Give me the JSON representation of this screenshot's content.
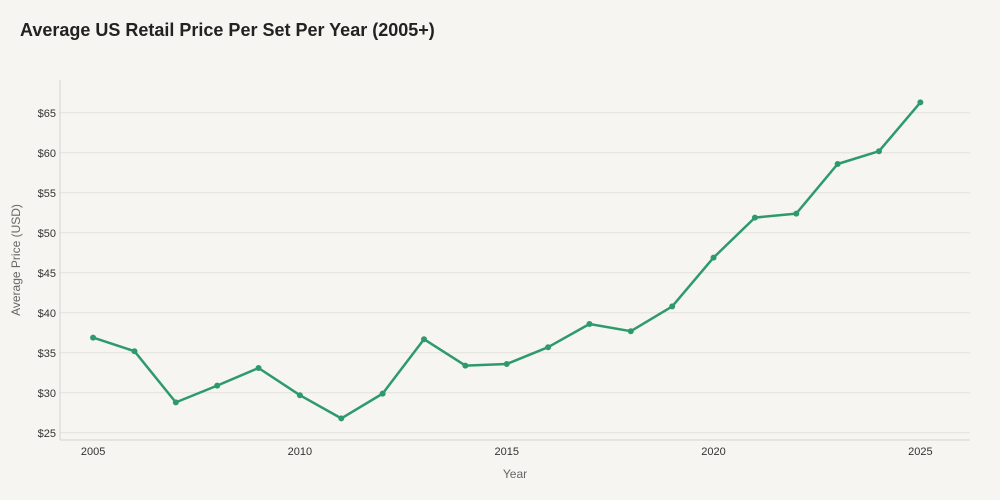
{
  "chart_data": {
    "type": "line",
    "title": "Average US Retail Price Per Set Per Year (2005+)",
    "xlabel": "Year",
    "ylabel": "Average Price (USD)",
    "x": [
      2005,
      2006,
      2007,
      2008,
      2009,
      2010,
      2011,
      2012,
      2013,
      2014,
      2015,
      2016,
      2017,
      2018,
      2019,
      2020,
      2021,
      2022,
      2023,
      2024,
      2025
    ],
    "series": [
      {
        "values": [
          36.9,
          35.2,
          28.8,
          30.9,
          33.1,
          29.7,
          26.8,
          29.9,
          36.7,
          33.4,
          33.6,
          35.7,
          38.6,
          37.7,
          40.8,
          46.9,
          51.9,
          52.4,
          58.6,
          60.2,
          66.3
        ]
      }
    ],
    "x_ticks": [
      2005,
      2010,
      2015,
      2020,
      2025
    ],
    "x_tick_labels": [
      "2005",
      "2010",
      "2015",
      "2020",
      "2025"
    ],
    "y_ticks": [
      25,
      30,
      35,
      40,
      45,
      50,
      55,
      60,
      65
    ],
    "y_tick_labels": [
      "$25",
      "$30",
      "$35",
      "$40",
      "$45",
      "$50",
      "$55",
      "$60",
      "$65"
    ],
    "xlim": [
      2004.2,
      2026.2
    ],
    "ylim": [
      24.1,
      69.1
    ],
    "grid": true,
    "legend": "none",
    "colors": {
      "line": "#2e9a6c",
      "grid": "#e4e2dc",
      "axis": "#d6d4ce",
      "background": "#f6f5f1"
    }
  }
}
